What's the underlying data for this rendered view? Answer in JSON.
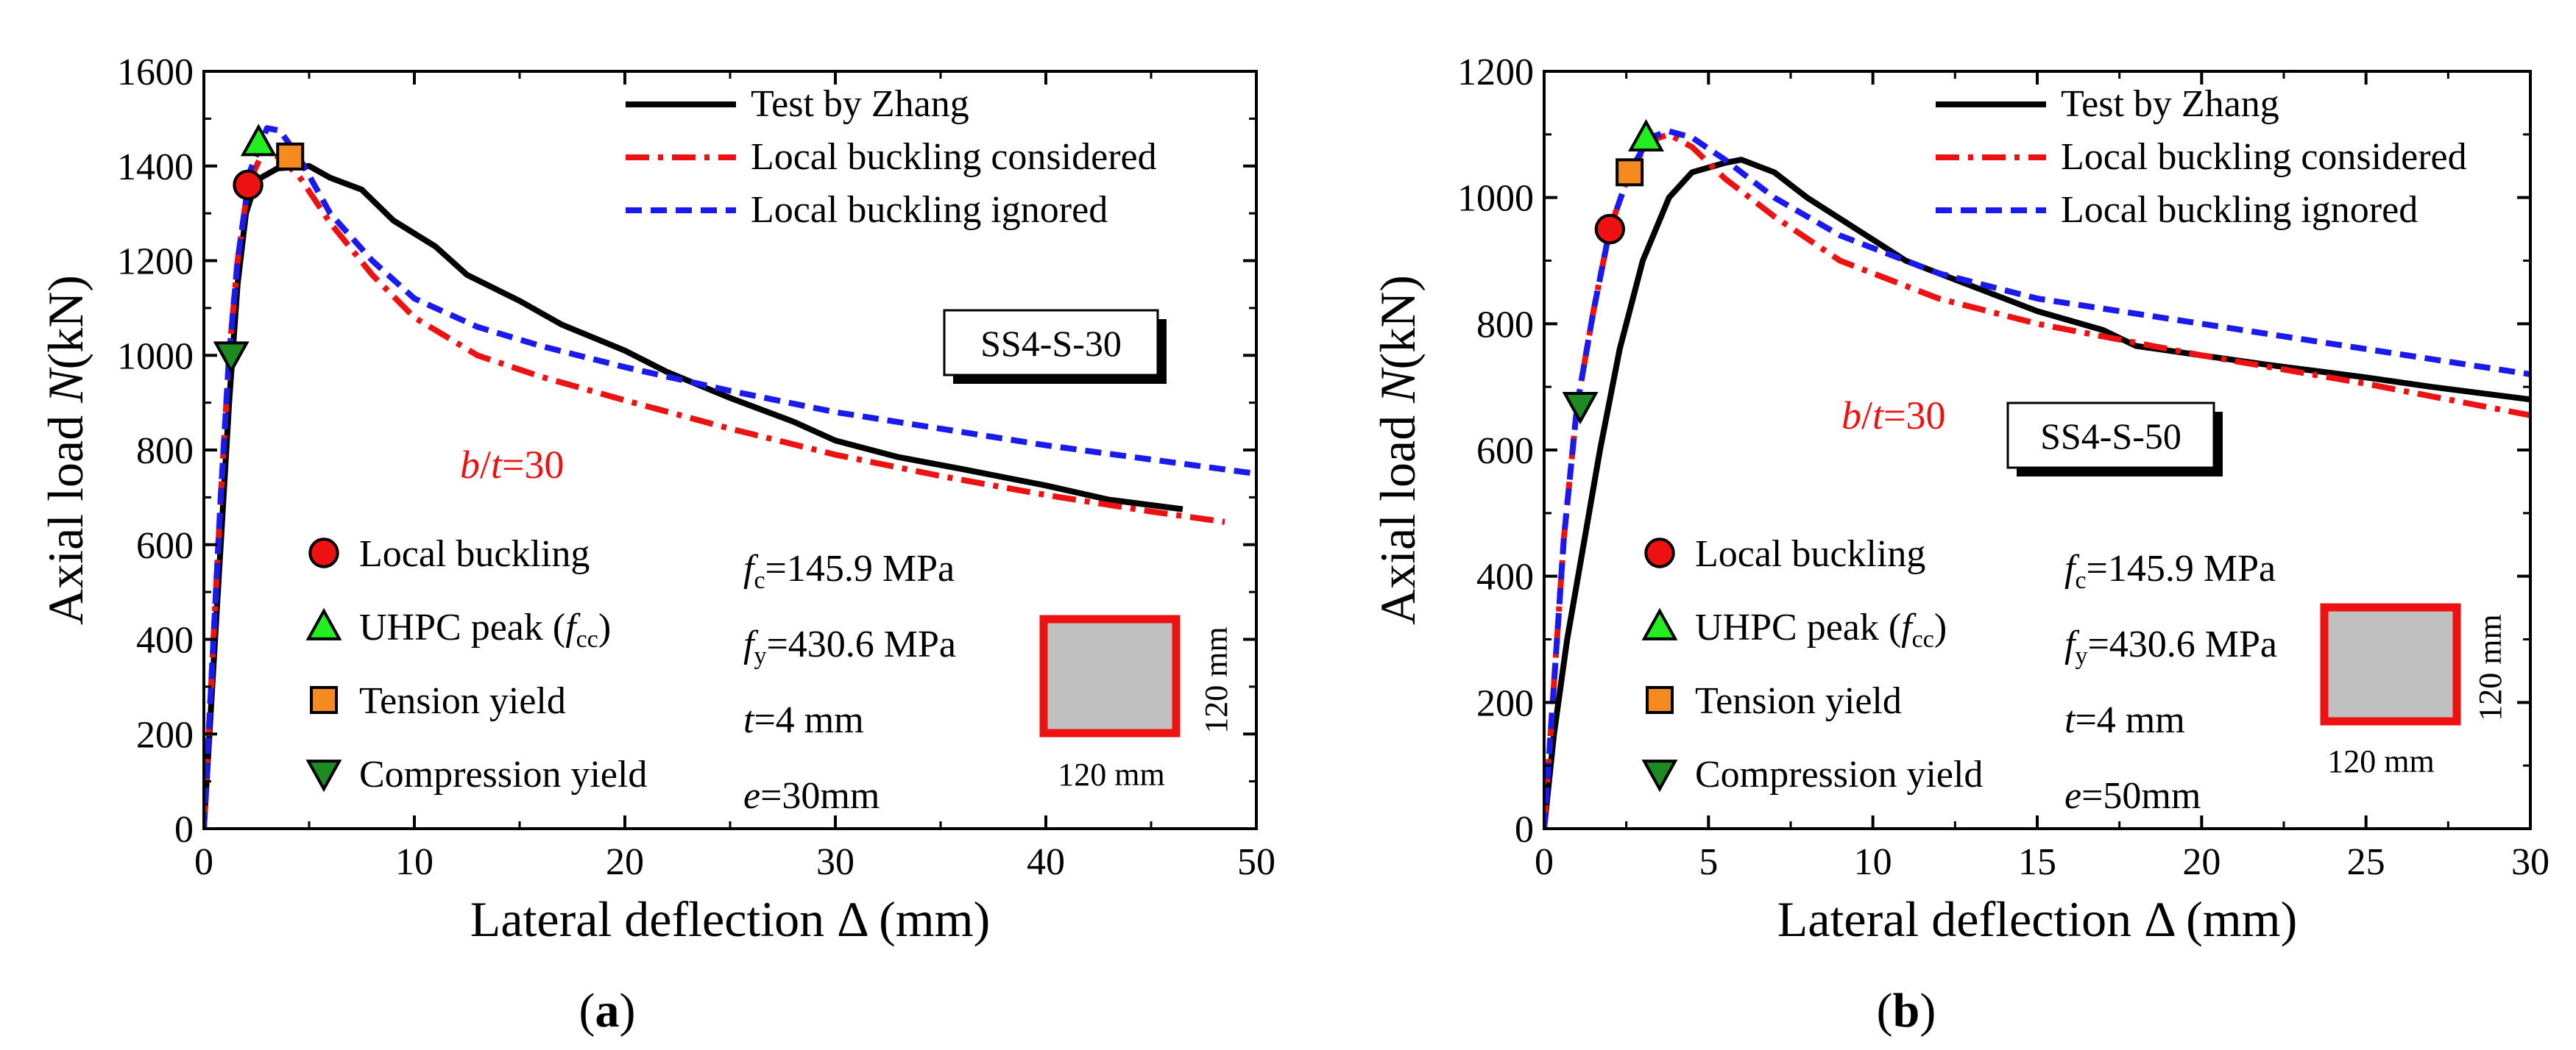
{
  "colors": {
    "test": "#000000",
    "considered": "#ee1111",
    "ignored": "#1a1aee",
    "local_buckling_marker": "#ee1111",
    "uhpc_peak_marker": "#22ee22",
    "tension_yield_marker": "#f58a1f",
    "compression_yield_marker": "#1d8a22",
    "section_fill": "#c0c0c0",
    "section_border": "#ee1111"
  },
  "chart_data": [
    {
      "type": "line",
      "panel": "(a)",
      "panel_label": "a",
      "xlabel": "Lateral deflection Δ (mm)",
      "ylabel": "Axial load N(kN)",
      "xlim": [
        0,
        50
      ],
      "ylim": [
        0,
        1600
      ],
      "xticks": [
        0,
        10,
        20,
        30,
        40,
        50
      ],
      "yticks": [
        0,
        200,
        400,
        600,
        800,
        1000,
        1200,
        1400,
        1600
      ],
      "legend": [
        "Test by Zhang",
        "Local buckling considered",
        "Local buckling ignored"
      ],
      "legend_position": "top-right",
      "specimen": "SS4-S-30",
      "bt_label": "b/t=30",
      "marker_legend": [
        "Local buckling",
        "UHPC peak (fcc)",
        "Tension yield",
        "Compression yield"
      ],
      "params": [
        "fc=145.9 MPa",
        "fy=430.6 MPa",
        "t=4 mm",
        "e=30mm"
      ],
      "section_width": "120 mm",
      "section_height": "120 mm",
      "series": [
        {
          "name": "Test by Zhang",
          "style": "solid",
          "points": [
            [
              0,
              0
            ],
            [
              0.4,
              300
            ],
            [
              0.8,
              600
            ],
            [
              1.2,
              900
            ],
            [
              1.6,
              1150
            ],
            [
              2.0,
              1300
            ],
            [
              2.5,
              1370
            ],
            [
              3.5,
              1395
            ],
            [
              5,
              1400
            ],
            [
              6,
              1375
            ],
            [
              7.5,
              1350
            ],
            [
              9,
              1285
            ],
            [
              11,
              1230
            ],
            [
              12.5,
              1170
            ],
            [
              15,
              1115
            ],
            [
              16,
              1090
            ],
            [
              17,
              1065
            ],
            [
              20,
              1010
            ],
            [
              22,
              965
            ],
            [
              25,
              910
            ],
            [
              28,
              860
            ],
            [
              30,
              820
            ],
            [
              33,
              785
            ],
            [
              36,
              760
            ],
            [
              40,
              725
            ],
            [
              43,
              695
            ],
            [
              46.5,
              675
            ]
          ]
        },
        {
          "name": "Local buckling considered",
          "style": "dashdot",
          "points": [
            [
              0,
              0
            ],
            [
              0.4,
              350
            ],
            [
              0.8,
              700
            ],
            [
              1.2,
              1000
            ],
            [
              1.6,
              1200
            ],
            [
              2.1,
              1360
            ],
            [
              2.8,
              1430
            ],
            [
              3.5,
              1420
            ],
            [
              4.5,
              1380
            ],
            [
              6,
              1280
            ],
            [
              8,
              1170
            ],
            [
              10,
              1080
            ],
            [
              13,
              1000
            ],
            [
              16,
              955
            ],
            [
              20,
              905
            ],
            [
              25,
              845
            ],
            [
              30,
              790
            ],
            [
              35,
              745
            ],
            [
              40,
              705
            ],
            [
              45,
              670
            ],
            [
              48.5,
              648
            ]
          ]
        },
        {
          "name": "Local buckling ignored",
          "style": "dashed",
          "points": [
            [
              0,
              0
            ],
            [
              0.4,
              350
            ],
            [
              0.8,
              700
            ],
            [
              1.2,
              1000
            ],
            [
              1.6,
              1200
            ],
            [
              2.2,
              1390
            ],
            [
              3.0,
              1480
            ],
            [
              3.6,
              1475
            ],
            [
              4.5,
              1420
            ],
            [
              6,
              1300
            ],
            [
              8,
              1200
            ],
            [
              10,
              1120
            ],
            [
              13,
              1060
            ],
            [
              16,
              1020
            ],
            [
              20,
              975
            ],
            [
              25,
              925
            ],
            [
              30,
              880
            ],
            [
              35,
              845
            ],
            [
              40,
              810
            ],
            [
              45,
              780
            ],
            [
              50,
              750
            ]
          ]
        }
      ],
      "markers": [
        {
          "label": "Local buckling",
          "shape": "circle",
          "x": 2.1,
          "y": 1360
        },
        {
          "label": "UHPC peak (fcc)",
          "shape": "triangle-up",
          "x": 2.6,
          "y": 1450
        },
        {
          "label": "Tension yield",
          "shape": "square",
          "x": 4.1,
          "y": 1420
        },
        {
          "label": "Compression yield",
          "shape": "triangle-down",
          "x": 1.3,
          "y": 1000
        }
      ]
    },
    {
      "type": "line",
      "panel": "(b)",
      "panel_label": "b",
      "xlabel": "Lateral deflection Δ (mm)",
      "ylabel": "Axial load N(kN)",
      "xlim": [
        0,
        30
      ],
      "ylim": [
        0,
        1200
      ],
      "xticks": [
        0,
        5,
        10,
        15,
        20,
        25,
        30
      ],
      "yticks": [
        0,
        200,
        400,
        600,
        800,
        1000,
        1200
      ],
      "legend": [
        "Test by Zhang",
        "Local buckling considered",
        "Local buckling ignored"
      ],
      "legend_position": "top-right",
      "specimen": "SS4-S-50",
      "bt_label": "b/t=30",
      "marker_legend": [
        "Local buckling",
        "UHPC peak (fcc)",
        "Tension yield",
        "Compression yield"
      ],
      "params": [
        "fc=145.9 MPa",
        "fy=430.6 MPa",
        "t=4 mm",
        "e=50mm"
      ],
      "section_width": "120 mm",
      "section_height": "120 mm",
      "series": [
        {
          "name": "Test by Zhang",
          "style": "solid",
          "points": [
            [
              0,
              0
            ],
            [
              0.3,
              150
            ],
            [
              0.7,
              300
            ],
            [
              1.2,
              450
            ],
            [
              1.7,
              600
            ],
            [
              2.3,
              760
            ],
            [
              3,
              900
            ],
            [
              3.8,
              1000
            ],
            [
              4.5,
              1040
            ],
            [
              5.5,
              1055
            ],
            [
              6,
              1060
            ],
            [
              7,
              1040
            ],
            [
              8,
              1000
            ],
            [
              9.5,
              950
            ],
            [
              11,
              900
            ],
            [
              13,
              860
            ],
            [
              15,
              820
            ],
            [
              17,
              790
            ],
            [
              18,
              765
            ],
            [
              20,
              750
            ],
            [
              22,
              735
            ],
            [
              25,
              715
            ],
            [
              27,
              700
            ],
            [
              30,
              680
            ]
          ]
        },
        {
          "name": "Local buckling considered",
          "style": "dashdot",
          "points": [
            [
              0,
              0
            ],
            [
              0.3,
              230
            ],
            [
              0.6,
              460
            ],
            [
              1.0,
              670
            ],
            [
              1.5,
              820
            ],
            [
              2.0,
              950
            ],
            [
              2.6,
              1040
            ],
            [
              3.2,
              1090
            ],
            [
              3.8,
              1100
            ],
            [
              4.5,
              1080
            ],
            [
              5.5,
              1030
            ],
            [
              7,
              970
            ],
            [
              9,
              900
            ],
            [
              12,
              840
            ],
            [
              15,
              800
            ],
            [
              20,
              750
            ],
            [
              25,
              705
            ],
            [
              30,
              655
            ]
          ]
        },
        {
          "name": "Local buckling ignored",
          "style": "dashed",
          "points": [
            [
              0,
              0
            ],
            [
              0.3,
              230
            ],
            [
              0.6,
              460
            ],
            [
              1.0,
              670
            ],
            [
              1.5,
              820
            ],
            [
              2.0,
              950
            ],
            [
              2.6,
              1040
            ],
            [
              3.2,
              1095
            ],
            [
              3.8,
              1105
            ],
            [
              4.5,
              1095
            ],
            [
              5.5,
              1060
            ],
            [
              7,
              1000
            ],
            [
              9,
              940
            ],
            [
              12,
              880
            ],
            [
              15,
              840
            ],
            [
              20,
              800
            ],
            [
              25,
              760
            ],
            [
              30,
              720
            ]
          ]
        }
      ],
      "markers": [
        {
          "label": "Local buckling",
          "shape": "circle",
          "x": 2.0,
          "y": 950
        },
        {
          "label": "UHPC peak (fcc)",
          "shape": "triangle-up",
          "x": 3.1,
          "y": 1095
        },
        {
          "label": "Tension yield",
          "shape": "square",
          "x": 2.6,
          "y": 1040
        },
        {
          "label": "Compression yield",
          "shape": "triangle-down",
          "x": 1.1,
          "y": 670
        }
      ]
    }
  ]
}
